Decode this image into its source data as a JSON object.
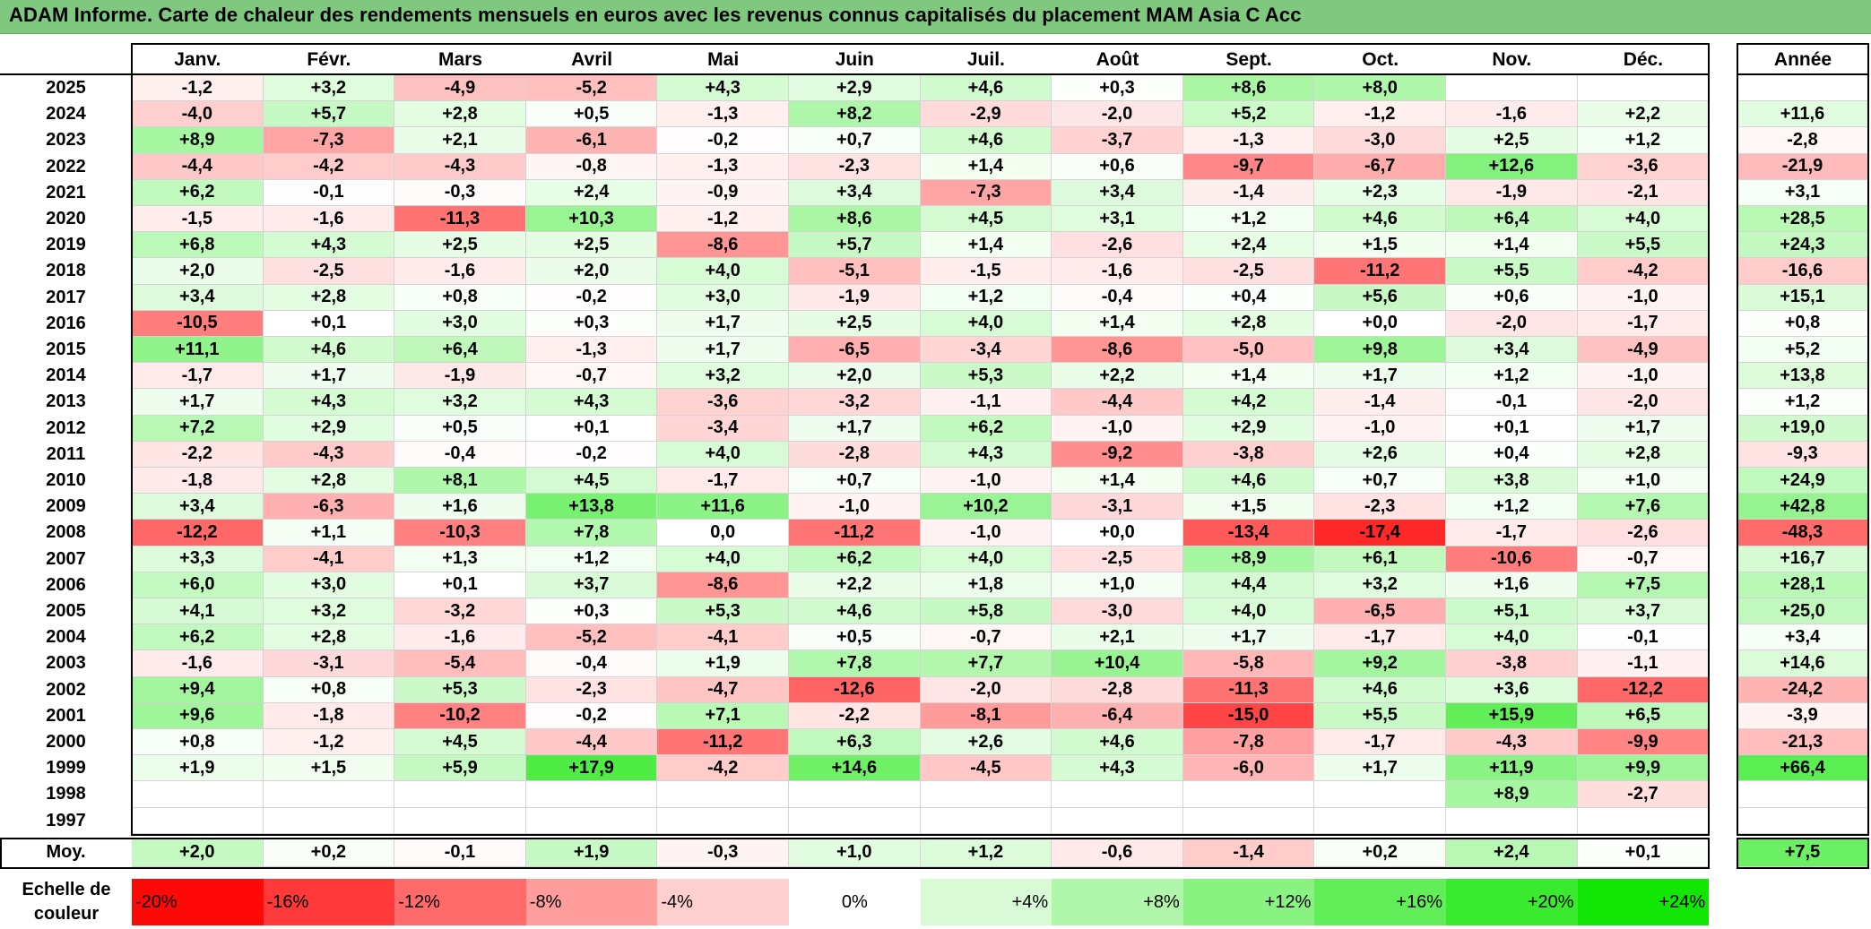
{
  "title": "ADAM Informe. Carte de chaleur des rendements mensuels en euros avec les revenus connus capitalisés du placement MAM Asia C Acc",
  "colors": {
    "title_bg": "#80c880",
    "negative_max": "#ff0000",
    "positive_max": "#00e600",
    "neutral": "#ffffff"
  },
  "chart_data": {
    "type": "heatmap",
    "title": "ADAM Informe. Carte de chaleur des rendements mensuels en euros avec les revenus connus capitalisés du placement MAM Asia C Acc",
    "months": [
      "Janv.",
      "Févr.",
      "Mars",
      "Avril",
      "Mai",
      "Juin",
      "Juil.",
      "Août",
      "Sept.",
      "Oct.",
      "Nov.",
      "Déc."
    ],
    "annual_header": "Année",
    "rows": [
      {
        "year": "2025",
        "values": [
          "-1,2",
          "+3,2",
          "-4,9",
          "-5,2",
          "+4,3",
          "+2,9",
          "+4,6",
          "+0,3",
          "+8,6",
          "+8,0",
          "",
          ""
        ],
        "annual": ""
      },
      {
        "year": "2024",
        "values": [
          "-4,0",
          "+5,7",
          "+2,8",
          "+0,5",
          "-1,3",
          "+8,2",
          "-2,9",
          "-2,0",
          "+5,2",
          "-1,2",
          "-1,6",
          "+2,2"
        ],
        "annual": "+11,6"
      },
      {
        "year": "2023",
        "values": [
          "+8,9",
          "-7,3",
          "+2,1",
          "-6,1",
          "-0,2",
          "+0,7",
          "+4,6",
          "-3,7",
          "-1,3",
          "-3,0",
          "+2,5",
          "+1,2"
        ],
        "annual": "-2,8"
      },
      {
        "year": "2022",
        "values": [
          "-4,4",
          "-4,2",
          "-4,3",
          "-0,8",
          "-1,3",
          "-2,3",
          "+1,4",
          "+0,6",
          "-9,7",
          "-6,7",
          "+12,6",
          "-3,6"
        ],
        "annual": "-21,9"
      },
      {
        "year": "2021",
        "values": [
          "+6,2",
          "-0,1",
          "-0,3",
          "+2,4",
          "-0,9",
          "+3,4",
          "-7,3",
          "+3,4",
          "-1,4",
          "+2,3",
          "-1,9",
          "-2,1"
        ],
        "annual": "+3,1"
      },
      {
        "year": "2020",
        "values": [
          "-1,5",
          "-1,6",
          "-11,3",
          "+10,3",
          "-1,2",
          "+8,6",
          "+4,5",
          "+3,1",
          "+1,2",
          "+4,6",
          "+6,4",
          "+4,0"
        ],
        "annual": "+28,5"
      },
      {
        "year": "2019",
        "values": [
          "+6,8",
          "+4,3",
          "+2,5",
          "+2,5",
          "-8,6",
          "+5,7",
          "+1,4",
          "-2,6",
          "+2,4",
          "+1,5",
          "+1,4",
          "+5,5"
        ],
        "annual": "+24,3"
      },
      {
        "year": "2018",
        "values": [
          "+2,0",
          "-2,5",
          "-1,6",
          "+2,0",
          "+4,0",
          "-5,1",
          "-1,5",
          "-1,6",
          "-2,5",
          "-11,2",
          "+5,5",
          "-4,2"
        ],
        "annual": "-16,6"
      },
      {
        "year": "2017",
        "values": [
          "+3,4",
          "+2,8",
          "+0,8",
          "-0,2",
          "+3,0",
          "-1,9",
          "+1,2",
          "-0,4",
          "+0,4",
          "+5,6",
          "+0,6",
          "-1,0"
        ],
        "annual": "+15,1"
      },
      {
        "year": "2016",
        "values": [
          "-10,5",
          "+0,1",
          "+3,0",
          "+0,3",
          "+1,7",
          "+2,5",
          "+4,0",
          "+1,4",
          "+2,8",
          "+0,0",
          "-2,0",
          "-1,7"
        ],
        "annual": "+0,8"
      },
      {
        "year": "2015",
        "values": [
          "+11,1",
          "+4,6",
          "+6,4",
          "-1,3",
          "+1,7",
          "-6,5",
          "-3,4",
          "-8,6",
          "-5,0",
          "+9,8",
          "+3,4",
          "-4,9"
        ],
        "annual": "+5,2"
      },
      {
        "year": "2014",
        "values": [
          "-1,7",
          "+1,7",
          "-1,9",
          "-0,7",
          "+3,2",
          "+2,0",
          "+5,3",
          "+2,2",
          "+1,4",
          "+1,7",
          "+1,2",
          "-1,0"
        ],
        "annual": "+13,8"
      },
      {
        "year": "2013",
        "values": [
          "+1,7",
          "+4,3",
          "+3,2",
          "+4,3",
          "-3,6",
          "-3,2",
          "-1,1",
          "-4,4",
          "+4,2",
          "-1,4",
          "-0,1",
          "-2,0"
        ],
        "annual": "+1,2"
      },
      {
        "year": "2012",
        "values": [
          "+7,2",
          "+2,9",
          "+0,5",
          "+0,1",
          "-3,4",
          "+1,7",
          "+6,2",
          "-1,0",
          "+2,9",
          "-1,0",
          "+0,1",
          "+1,7"
        ],
        "annual": "+19,0"
      },
      {
        "year": "2011",
        "values": [
          "-2,2",
          "-4,3",
          "-0,4",
          "-0,2",
          "+4,0",
          "-2,8",
          "+4,3",
          "-9,2",
          "-3,8",
          "+2,6",
          "+0,4",
          "+2,8"
        ],
        "annual": "-9,3"
      },
      {
        "year": "2010",
        "values": [
          "-1,8",
          "+2,8",
          "+8,1",
          "+4,5",
          "-1,7",
          "+0,7",
          "-1,0",
          "+1,4",
          "+4,6",
          "+0,7",
          "+3,8",
          "+1,0"
        ],
        "annual": "+24,9"
      },
      {
        "year": "2009",
        "values": [
          "+3,4",
          "-6,3",
          "+1,6",
          "+13,8",
          "+11,6",
          "-1,0",
          "+10,2",
          "-3,1",
          "+1,5",
          "-2,3",
          "+1,2",
          "+7,6"
        ],
        "annual": "+42,8"
      },
      {
        "year": "2008",
        "values": [
          "-12,2",
          "+1,1",
          "-10,3",
          "+7,8",
          "0,0",
          "-11,2",
          "-1,0",
          "+0,0",
          "-13,4",
          "-17,4",
          "-1,7",
          "-2,6"
        ],
        "annual": "-48,3"
      },
      {
        "year": "2007",
        "values": [
          "+3,3",
          "-4,1",
          "+1,3",
          "+1,2",
          "+4,0",
          "+6,2",
          "+4,0",
          "-2,5",
          "+8,9",
          "+6,1",
          "-10,6",
          "-0,7"
        ],
        "annual": "+16,7"
      },
      {
        "year": "2006",
        "values": [
          "+6,0",
          "+3,0",
          "+0,1",
          "+3,7",
          "-8,6",
          "+2,2",
          "+1,8",
          "+1,0",
          "+4,4",
          "+3,2",
          "+1,6",
          "+7,5"
        ],
        "annual": "+28,1"
      },
      {
        "year": "2005",
        "values": [
          "+4,1",
          "+3,2",
          "-3,2",
          "+0,3",
          "+5,3",
          "+4,6",
          "+5,8",
          "-3,0",
          "+4,0",
          "-6,5",
          "+5,1",
          "+3,7"
        ],
        "annual": "+25,0"
      },
      {
        "year": "2004",
        "values": [
          "+6,2",
          "+2,8",
          "-1,6",
          "-5,2",
          "-4,1",
          "+0,5",
          "-0,7",
          "+2,1",
          "+1,7",
          "-1,7",
          "+4,0",
          "-0,1"
        ],
        "annual": "+3,4"
      },
      {
        "year": "2003",
        "values": [
          "-1,6",
          "-3,1",
          "-5,4",
          "-0,4",
          "+1,9",
          "+7,8",
          "+7,7",
          "+10,4",
          "-5,8",
          "+9,2",
          "-3,8",
          "-1,1"
        ],
        "annual": "+14,6"
      },
      {
        "year": "2002",
        "values": [
          "+9,4",
          "+0,8",
          "+5,3",
          "-2,3",
          "-4,7",
          "-12,6",
          "-2,0",
          "-2,8",
          "-11,3",
          "+4,6",
          "+3,6",
          "-12,2"
        ],
        "annual": "-24,2"
      },
      {
        "year": "2001",
        "values": [
          "+9,6",
          "-1,8",
          "-10,2",
          "-0,2",
          "+7,1",
          "-2,2",
          "-8,1",
          "-6,4",
          "-15,0",
          "+5,5",
          "+15,9",
          "+6,5"
        ],
        "annual": "-3,9"
      },
      {
        "year": "2000",
        "values": [
          "+0,8",
          "-1,2",
          "+4,5",
          "-4,4",
          "-11,2",
          "+6,3",
          "+2,6",
          "+4,6",
          "-7,8",
          "-1,7",
          "-4,3",
          "-9,9"
        ],
        "annual": "-21,3"
      },
      {
        "year": "1999",
        "values": [
          "+1,9",
          "+1,5",
          "+5,9",
          "+17,9",
          "-4,2",
          "+14,6",
          "-4,5",
          "+4,3",
          "-6,0",
          "+1,7",
          "+11,9",
          "+9,9"
        ],
        "annual": "+66,4"
      },
      {
        "year": "1998",
        "values": [
          "",
          "",
          "",
          "",
          "",
          "",
          "",
          "",
          "",
          "",
          "+8,9",
          "-2,7"
        ],
        "annual": ""
      },
      {
        "year": "1997",
        "values": [
          "",
          "",
          "",
          "",
          "",
          "",
          "",
          "",
          "",
          "",
          "",
          ""
        ],
        "annual": ""
      }
    ],
    "average": {
      "label": "Moy.",
      "values": [
        "+2,0",
        "+0,2",
        "-0,1",
        "+1,9",
        "-0,3",
        "+1,0",
        "+1,2",
        "-0,6",
        "-1,4",
        "+0,2",
        "+2,4",
        "+0,1"
      ],
      "annual": "+7,5"
    },
    "legend": {
      "label": "Echelle de couleur",
      "steps": [
        {
          "label": "-20%",
          "value": -20
        },
        {
          "label": "-16%",
          "value": -16
        },
        {
          "label": "-12%",
          "value": -12
        },
        {
          "label": "-8%",
          "value": -8
        },
        {
          "label": "-4%",
          "value": -4
        },
        {
          "label": "0%",
          "value": 0
        },
        {
          "label": "+4%",
          "value": 4
        },
        {
          "label": "+8%",
          "value": 8
        },
        {
          "label": "+12%",
          "value": 12
        },
        {
          "label": "+16%",
          "value": 16
        },
        {
          "label": "+20%",
          "value": 20
        },
        {
          "label": "+24%",
          "value": 24
        }
      ]
    }
  }
}
